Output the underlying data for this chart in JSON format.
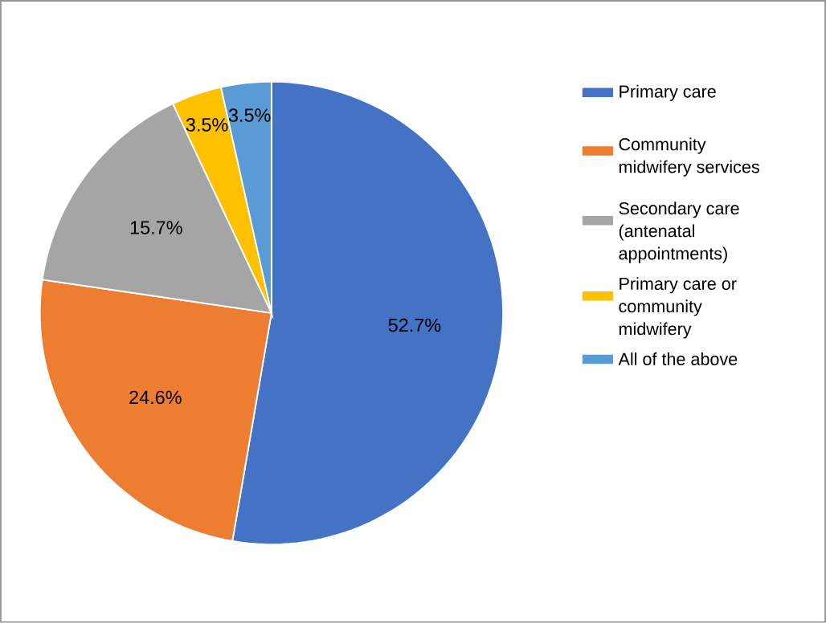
{
  "chart_data": {
    "type": "pie",
    "categories": [
      "Primary care",
      "Community midwifery services",
      "Secondary care (antenatal appointments)",
      "Primary care or community midwifery",
      "All of the above"
    ],
    "values": [
      52.7,
      24.6,
      15.7,
      3.5,
      3.5
    ],
    "colors": [
      "#4472c4",
      "#ed7d31",
      "#a5a5a5",
      "#ffc000",
      "#5b9bd5"
    ],
    "value_labels": [
      "52.7%",
      "24.6%",
      "15.7%",
      "3.5%",
      "3.5%"
    ],
    "legend": "right"
  }
}
